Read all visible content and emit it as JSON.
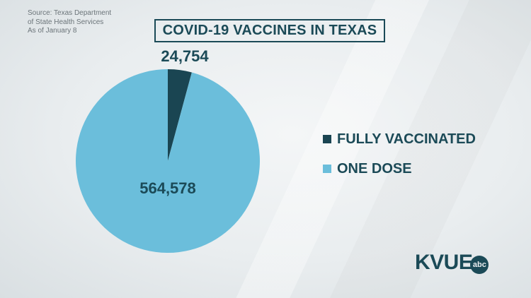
{
  "source": {
    "lines": [
      "Source: Texas Department",
      "of State Health Services",
      "As of January 8"
    ]
  },
  "title": "COVID-19 VACCINES IN TEXAS",
  "logo": {
    "text": "KVUE",
    "badge": "abc"
  },
  "colors": {
    "accent": "#1b4a57",
    "fully": "#1a4552",
    "one_dose": "#6bbedb"
  },
  "chart_data": {
    "type": "pie",
    "title": "COVID-19 VACCINES IN TEXAS",
    "slices": [
      {
        "label": "FULLY VACCINATED",
        "value": 24754,
        "display": "24,754",
        "color": "#1a4552"
      },
      {
        "label": "ONE DOSE",
        "value": 564578,
        "display": "564,578",
        "color": "#6bbedb"
      }
    ],
    "legend_position": "right"
  }
}
